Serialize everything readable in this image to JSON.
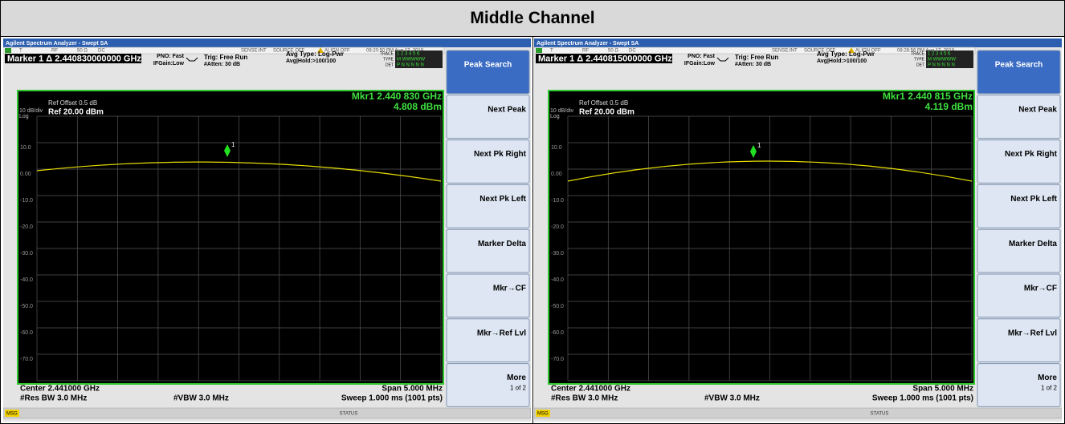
{
  "title": "Middle Channel",
  "panels": [
    {
      "app_title": "Agilent Spectrum Analyzer - Swept SA",
      "status_items": [
        "T",
        "RF",
        "50 Ω",
        "DC",
        "SENSE:INT",
        "SOURCE OFF",
        "ALIGN OFF",
        "08:20:50 PM Aug 17, 2018"
      ],
      "marker_line": "Marker 1 Δ 2.440830000000 GHz",
      "pno": "PNO: Fast",
      "ifgain": "IFGain:Low",
      "trig": "Trig: Free Run",
      "atten": "#Atten: 30 dB",
      "avg_type": "Avg Type: Log-Pwr",
      "avg_hold": "Avg|Hold:>100/100",
      "trace_label": "TRACE",
      "type_label": "TYPE",
      "det_label": "DET",
      "trace_nums": "1 2 3 4 5 6",
      "type_vals": "M WWWWW",
      "det_vals": "P N N N N N",
      "ref_offset": "Ref Offset 0.5 dB",
      "scale": "10 dB/div",
      "ref": "Ref 20.00 dBm",
      "log": "Log",
      "mkr_freq": "Mkr1 2.440 830 GHz",
      "mkr_amp": "4.808 dBm",
      "marker_num": "1",
      "y_labels": [
        "10.0",
        "0.00",
        "-10.0",
        "-20.0",
        "-30.0",
        "-40.0",
        "-50.0",
        "-60.0",
        "-70.0"
      ],
      "center": "Center 2.441000 GHz",
      "span": "Span 5.000 MHz",
      "rbw": "#Res BW 3.0 MHz",
      "vbw": "#VBW 3.0 MHz",
      "sweep": "Sweep  1.000 ms (1001 pts)",
      "msg": "MSG",
      "status": "STATUS",
      "softkeys": [
        "Peak Search",
        "Next Peak",
        "Next Pk Right",
        "Next Pk Left",
        "Marker Delta",
        "Mkr→CF",
        "Mkr→Ref Lvl",
        "More"
      ],
      "more_sub": "1 of 2"
    },
    {
      "app_title": "Agilent Spectrum Analyzer - Swept SA",
      "status_items": [
        "T",
        "RF",
        "50 Ω",
        "DC",
        "SENSE:INT",
        "SOURCE OFF",
        "ALIGN OFF",
        "08:28:56 PM Aug 17, 2018"
      ],
      "marker_line": "Marker 1 Δ 2.440815000000 GHz",
      "pno": "PNO: Fast",
      "ifgain": "IFGain:Low",
      "trig": "Trig: Free Run",
      "atten": "#Atten: 30 dB",
      "avg_type": "Avg Type: Log-Pwr",
      "avg_hold": "Avg|Hold:>100/100",
      "trace_label": "TRACE",
      "type_label": "TYPE",
      "det_label": "DET",
      "trace_nums": "1 2 3 4 5 6",
      "type_vals": "M WWWWW",
      "det_vals": "P N N N N N",
      "ref_offset": "Ref Offset 0.5 dB",
      "scale": "10 dB/div",
      "ref": "Ref 20.00 dBm",
      "log": "Log",
      "mkr_freq": "Mkr1 2.440 815 GHz",
      "mkr_amp": "4.119 dBm",
      "marker_num": "1",
      "y_labels": [
        "10.0",
        "0.00",
        "-10.0",
        "-20.0",
        "-30.0",
        "-40.0",
        "-50.0",
        "-60.0",
        "-70.0"
      ],
      "center": "Center 2.441000 GHz",
      "span": "Span 5.000 MHz",
      "rbw": "#Res BW 3.0 MHz",
      "vbw": "#VBW 3.0 MHz",
      "sweep": "Sweep  1.000 ms (1001 pts)",
      "msg": "MSG",
      "status": "STATUS",
      "softkeys": [
        "Peak Search",
        "Next Peak",
        "Next Pk Right",
        "Next Pk Left",
        "Marker Delta",
        "Mkr→CF",
        "Mkr→Ref Lvl",
        "More"
      ],
      "more_sub": "1 of 2"
    }
  ]
}
